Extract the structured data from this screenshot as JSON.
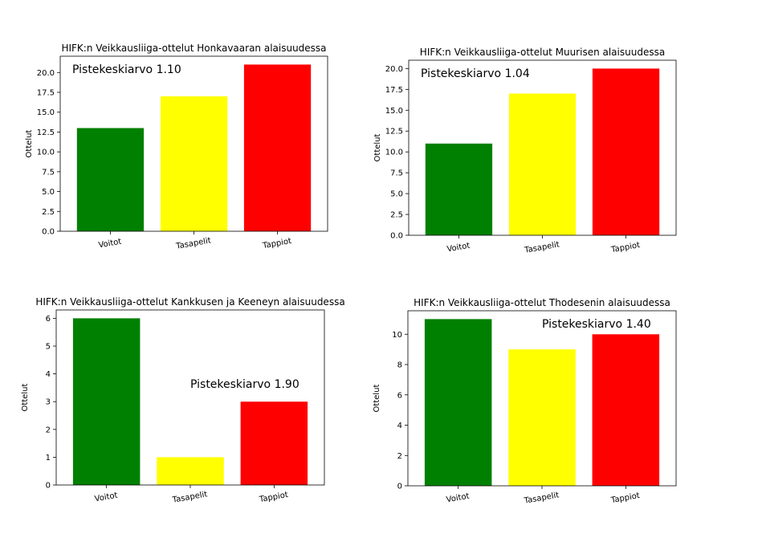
{
  "chart_data": [
    {
      "type": "bar",
      "title": "HIFK:n Veikkausliiga-ottelut Honkavaaran alaisuudessa",
      "ylabel": "Ottelut",
      "xlabel": "",
      "categories": [
        "Voitot",
        "Tasapelit",
        "Tappiot"
      ],
      "values": [
        13,
        17,
        21
      ],
      "colors": [
        "#008000",
        "#ffff00",
        "#ff0000"
      ],
      "ylim": [
        0,
        22.05
      ],
      "yticks": [
        "0.0",
        "2.5",
        "5.0",
        "7.5",
        "10.0",
        "12.5",
        "15.0",
        "17.5",
        "20.0"
      ],
      "annotation": "Pistekeskiarvo 1.10",
      "annotation_position": "top-left",
      "grid": false
    },
    {
      "type": "bar",
      "title": "HIFK:n Veikkausliiga-ottelut Muurisen alaisuudessa",
      "ylabel": "Ottelut",
      "xlabel": "",
      "categories": [
        "Voitot",
        "Tasapelit",
        "Tappiot"
      ],
      "values": [
        11,
        17,
        20
      ],
      "colors": [
        "#008000",
        "#ffff00",
        "#ff0000"
      ],
      "ylim": [
        0,
        21
      ],
      "yticks": [
        "0.0",
        "2.5",
        "5.0",
        "7.5",
        "10.0",
        "12.5",
        "15.0",
        "17.5",
        "20.0"
      ],
      "annotation": "Pistekeskiarvo 1.04",
      "annotation_position": "top-left",
      "grid": false
    },
    {
      "type": "bar",
      "title": "HIFK:n Veikkausliiga-ottelut Kankkusen ja Keeneyn alaisuudessa",
      "ylabel": "Ottelut",
      "xlabel": "",
      "categories": [
        "Voitot",
        "Tasapelit",
        "Tappiot"
      ],
      "values": [
        6,
        1,
        3
      ],
      "colors": [
        "#008000",
        "#ffff00",
        "#ff0000"
      ],
      "ylim": [
        0,
        6.3
      ],
      "yticks": [
        "0",
        "1",
        "2",
        "3",
        "4",
        "5",
        "6"
      ],
      "annotation": "Pistekeskiarvo 1.90",
      "annotation_position": "middle-right",
      "grid": false
    },
    {
      "type": "bar",
      "title": "HIFK:n Veikkausliiga-ottelut Thodesenin alaisuudessa",
      "ylabel": "Ottelut",
      "xlabel": "",
      "categories": [
        "Voitot",
        "Tasapelit",
        "Tappiot"
      ],
      "values": [
        11,
        9,
        10
      ],
      "colors": [
        "#008000",
        "#ffff00",
        "#ff0000"
      ],
      "ylim": [
        0,
        11.55
      ],
      "yticks": [
        "0",
        "2",
        "4",
        "6",
        "8",
        "10"
      ],
      "annotation": "Pistekeskiarvo 1.40",
      "annotation_position": "top-right",
      "grid": false
    }
  ]
}
